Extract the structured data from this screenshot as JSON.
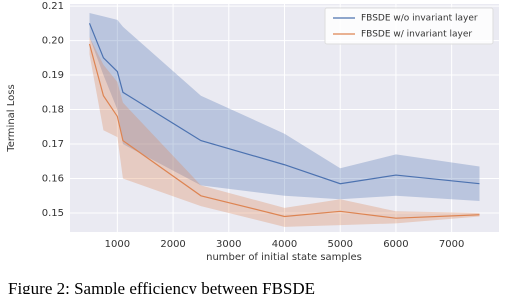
{
  "chart_data": {
    "type": "line",
    "x": [
      500,
      750,
      1000,
      1100,
      2500,
      4000,
      5000,
      6000,
      7500
    ],
    "series": [
      {
        "name": "FBSDE w/o invariant layer",
        "color": "#4c72b0",
        "values": [
          0.205,
          0.195,
          0.191,
          0.185,
          0.171,
          0.164,
          0.1585,
          0.161,
          0.1585
        ],
        "lower": [
          0.201,
          0.19,
          0.18,
          0.17,
          0.158,
          0.155,
          0.154,
          0.155,
          0.1535
        ],
        "upper": [
          0.208,
          0.207,
          0.206,
          0.204,
          0.184,
          0.173,
          0.163,
          0.167,
          0.1635
        ]
      },
      {
        "name": "FBSDE w/ invariant layer",
        "color": "#dd8452",
        "values": [
          0.199,
          0.184,
          0.178,
          0.171,
          0.155,
          0.149,
          0.1505,
          0.1485,
          0.1495
        ],
        "lower": [
          0.196,
          0.174,
          0.172,
          0.16,
          0.152,
          0.146,
          0.1465,
          0.147,
          0.149
        ],
        "upper": [
          0.201,
          0.193,
          0.188,
          0.182,
          0.158,
          0.1515,
          0.154,
          0.1505,
          0.15
        ]
      }
    ],
    "xlabel": "number of initial state samples",
    "ylabel": "Terminal Loss",
    "xlim": [
      150,
      7850
    ],
    "ylim": [
      0.1445,
      0.2106
    ],
    "xticks": [
      1000,
      2000,
      3000,
      4000,
      5000,
      6000,
      7000
    ],
    "yticks": [
      0.15,
      0.16,
      0.17,
      0.18,
      0.19,
      {
        "value": 0.2,
        "label": "0.20"
      },
      0.21
    ],
    "grid": true,
    "legend": "upper right",
    "caption": "Figure 2: Sample efficiency between FBSDE"
  }
}
